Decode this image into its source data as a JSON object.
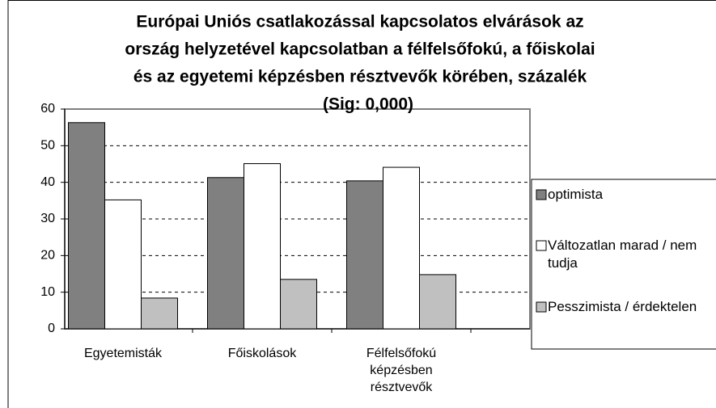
{
  "chart_data": {
    "type": "bar",
    "title_lines": [
      "Európai Uniós csatlakozással kapcsolatos elvárások az",
      "ország helyzetével kapcsolatban a félfelsőfokú, a főiskolai",
      "és az egyetemi képzésben résztvevők körében, százalék",
      "(Sig: 0,000)"
    ],
    "categories": [
      "Egyetemisták",
      "Főiskolások",
      "Félfelsőfokú képzésben résztvevők"
    ],
    "series": [
      {
        "name": "optimista",
        "color": "#808080",
        "values": [
          56.3,
          41.3,
          40.4
        ]
      },
      {
        "name": "Változatlan marad / nem tudja",
        "color": "#ffffff",
        "values": [
          35.2,
          45.1,
          44.1
        ]
      },
      {
        "name": "Pesszimista / érdektelen",
        "color": "#c0c0c0",
        "values": [
          8.4,
          13.5,
          14.8
        ]
      }
    ],
    "ylim": [
      0,
      60
    ],
    "yticks": [
      0,
      10,
      20,
      30,
      40,
      50,
      60
    ],
    "grid": true,
    "legend": "right"
  }
}
